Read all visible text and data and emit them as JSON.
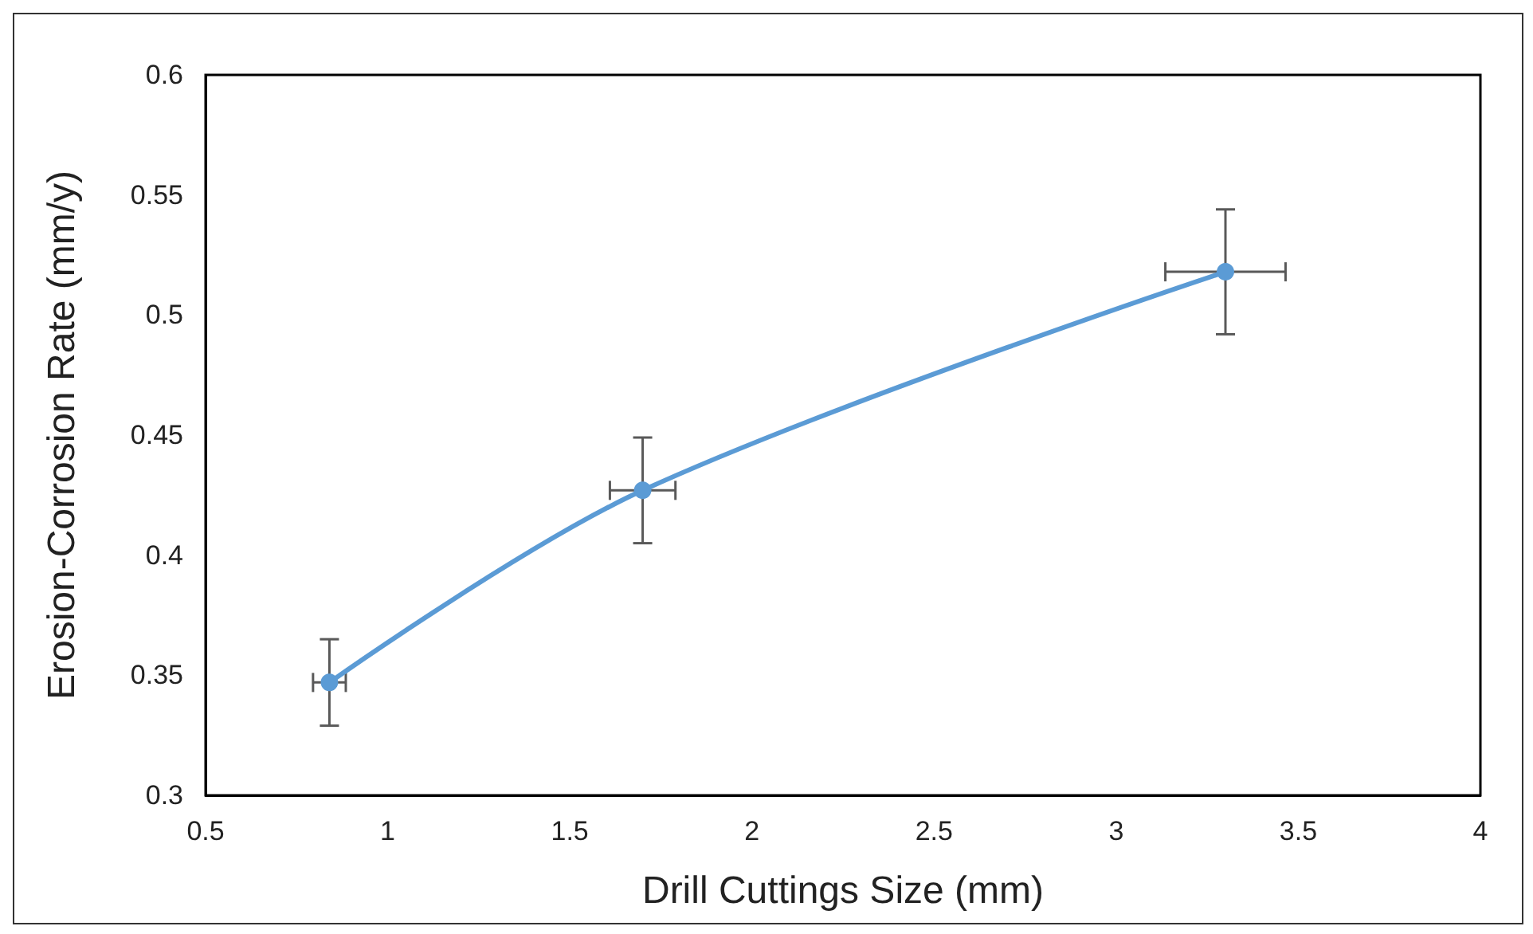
{
  "chart_data": {
    "type": "line",
    "xlabel": "Drill Cuttings Size (mm)",
    "ylabel": "Erosion-Corrosion Rate (mm/y)",
    "x": [
      0.84,
      1.7,
      3.3
    ],
    "series": [
      {
        "color": "#5b9bd5",
        "values": [
          0.347,
          0.427,
          0.518
        ],
        "errors": [
          0.018,
          0.022,
          0.026
        ],
        "xerrors": [
          0.045,
          0.09,
          0.165
        ]
      }
    ],
    "xlim": [
      0.5,
      4
    ],
    "xticks": [
      0.5,
      1,
      1.5,
      2,
      2.5,
      3,
      3.5,
      4
    ],
    "ylim": [
      0.3,
      0.6
    ],
    "yticks": [
      0.3,
      0.35,
      0.4,
      0.45,
      0.5,
      0.55,
      0.6
    ],
    "grid": false,
    "marker": "circle",
    "line_style": "solid"
  }
}
